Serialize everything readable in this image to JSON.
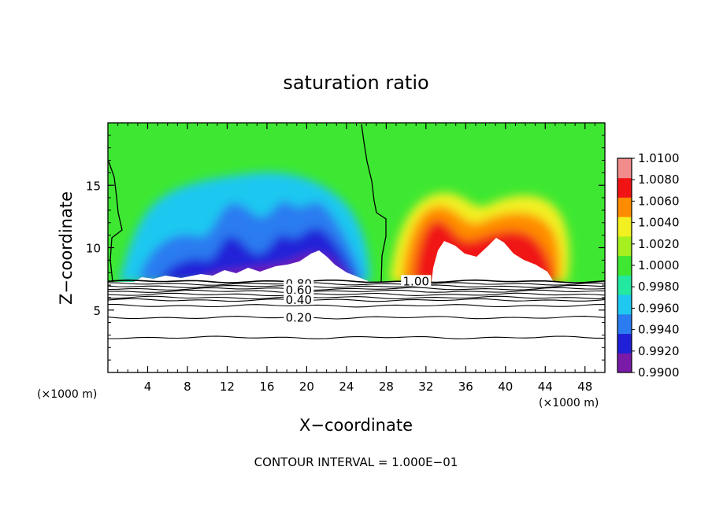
{
  "chart_data": {
    "type": "heatmap",
    "title": "saturation ratio",
    "xlabel": "X−coordinate",
    "ylabel": "Z−coordinate",
    "x_unit_label": "(×1000 m)",
    "x_unit_label_right": "(×1000 m)",
    "xlim": [
      0,
      50
    ],
    "ylim": [
      0,
      20
    ],
    "x_ticks": [
      4,
      8,
      12,
      16,
      20,
      24,
      28,
      32,
      36,
      40,
      44,
      48
    ],
    "x_tick_labels": [
      "4",
      "8",
      "12",
      "16",
      "20",
      "24",
      "28",
      "32",
      "36",
      "40",
      "44",
      "48"
    ],
    "y_ticks": [
      5,
      10,
      15
    ],
    "y_tick_labels": [
      "5",
      "10",
      "15"
    ],
    "footer": "CONTOUR INTERVAL = 1.000E−01",
    "colorbar": {
      "levels": [
        0.99,
        0.992,
        0.994,
        0.996,
        0.998,
        1.0,
        1.002,
        1.004,
        1.006,
        1.008,
        1.01
      ],
      "labels": [
        "0.9900",
        "0.9920",
        "0.9940",
        "0.9960",
        "0.9980",
        "1.0000",
        "1.0020",
        "1.0040",
        "1.0060",
        "1.0080",
        "1.0100"
      ],
      "colors": [
        "#7a1aa8",
        "#2020d8",
        "#2a7cf0",
        "#1fc8f0",
        "#22e8a0",
        "#3ee832",
        "#a6f020",
        "#f2f020",
        "#ff8c00",
        "#f01414",
        "#f28c8c"
      ]
    },
    "contour_labels": [
      {
        "text": "0.80",
        "x": 19.2,
        "z": 7.1
      },
      {
        "text": "0.60",
        "x": 19.2,
        "z": 6.6
      },
      {
        "text": "0.40",
        "x": 19.2,
        "z": 5.8
      },
      {
        "text": "0.20",
        "x": 19.2,
        "z": 4.4
      },
      {
        "text": "1.00",
        "x": 31.0,
        "z": 7.3
      }
    ],
    "contour_lines_z": [
      7.3,
      7.1,
      6.9,
      6.7,
      6.5,
      6.25,
      6.0,
      5.8,
      5.35,
      4.4,
      2.8
    ],
    "cloud_base_z": 7.3
  }
}
